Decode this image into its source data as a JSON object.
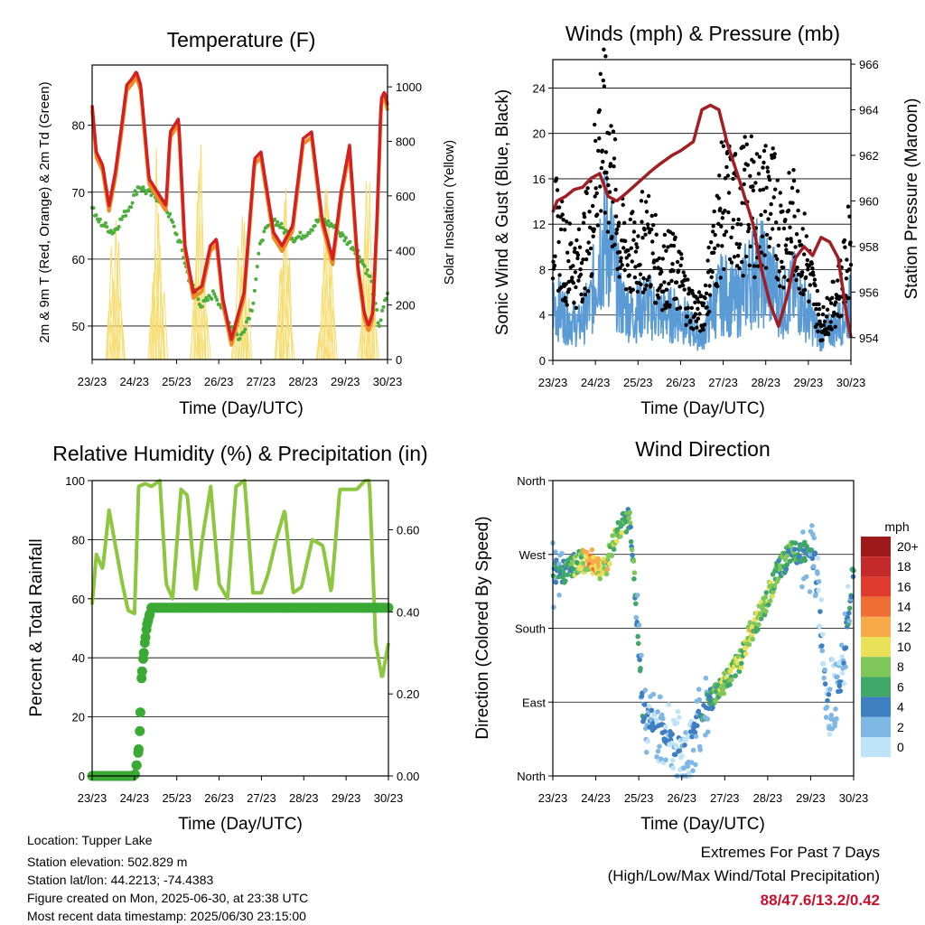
{
  "chart_data": [
    {
      "type": "line",
      "title": "Temperature (F)",
      "xlabel": "Time (Day/UTC)",
      "ylabel": "2m & 9m T (Red, Orange) & 2m Td (Green)",
      "ylabel_right": "Solar Insolation (Yellow)",
      "x_ticks": [
        "23/23",
        "24/23",
        "25/23",
        "26/23",
        "27/23",
        "28/23",
        "29/23",
        "30/23"
      ],
      "ylim": [
        45,
        89
      ],
      "y_ticks": [
        50,
        60,
        70,
        80
      ],
      "ylim_right": [
        0,
        1080
      ],
      "y_ticks_right": [
        0,
        200,
        400,
        600,
        800,
        1000
      ],
      "colors": {
        "t2m": "#d42020",
        "t9m": "#f08a24",
        "td": "#4cae3c",
        "solar": "#f7dc6f"
      },
      "series": [
        {
          "key": "t2m",
          "x": [
            0,
            0.1,
            0.25,
            0.4,
            0.55,
            0.7,
            0.82,
            0.95,
            1.05,
            1.15,
            1.35,
            1.55,
            1.75,
            1.85,
            2.05,
            2.2,
            2.4,
            2.6,
            2.8,
            2.95,
            3.1,
            3.3,
            3.6,
            3.85,
            4.0,
            4.15,
            4.3,
            4.5,
            4.75,
            5.0,
            5.2,
            5.45,
            5.7,
            5.9,
            6.1,
            6.3,
            6.45,
            6.55,
            6.65,
            6.75,
            6.85,
            6.93,
            7.0
          ],
          "values": [
            83,
            76,
            74,
            68,
            73,
            80,
            86,
            87,
            88,
            86,
            72,
            70,
            68,
            79,
            81,
            62,
            55,
            56,
            62,
            63,
            54,
            48,
            55,
            75,
            76,
            70,
            64,
            62,
            65,
            78,
            79,
            66,
            60,
            70,
            77,
            59,
            52,
            50,
            52,
            66,
            84,
            85,
            83
          ]
        },
        {
          "key": "td",
          "x": [
            0,
            0.1,
            0.3,
            0.5,
            0.7,
            0.9,
            1.1,
            1.3,
            1.6,
            1.8,
            2.1,
            2.3,
            2.6,
            2.9,
            3.2,
            3.5,
            3.8,
            4.0,
            4.3,
            4.6,
            4.8,
            5.1,
            5.4,
            5.7,
            6.0,
            6.3,
            6.6,
            6.8,
            7.0
          ],
          "values": [
            68,
            66,
            65,
            64,
            66,
            68,
            71,
            70,
            69,
            67,
            62,
            57,
            53,
            55,
            51,
            48,
            53,
            63,
            66,
            64,
            63,
            64,
            66,
            65,
            63,
            61,
            57,
            50,
            55
          ]
        },
        {
          "key": "solar",
          "day_peaks": [
            700,
            880,
            890,
            700,
            950,
            720,
            900
          ]
        }
      ]
    },
    {
      "type": "scatter",
      "title": "Winds (mph) & Pressure (mb)",
      "xlabel": "Time (Day/UTC)",
      "ylabel": "Sonic Wind & Gust (Blue, Black)",
      "ylabel_right": "Station Pressure (Maroon)",
      "x_ticks": [
        "23/23",
        "24/23",
        "25/23",
        "26/23",
        "27/23",
        "28/23",
        "29/23",
        "30/23"
      ],
      "ylim": [
        0,
        26.5
      ],
      "y_ticks": [
        0,
        4,
        8,
        12,
        16,
        20,
        24
      ],
      "ylim_right": [
        953.0,
        966.2
      ],
      "y_ticks_right": [
        954,
        956,
        958,
        960,
        962,
        964,
        966
      ],
      "colors": {
        "wind": "#5b9bd5",
        "gust": "#000000",
        "pressure": "#a01e24"
      },
      "series": [
        {
          "key": "wind",
          "x": [
            0,
            0.3,
            0.6,
            0.9,
            1.1,
            1.3,
            1.6,
            1.9,
            2.2,
            2.5,
            2.8,
            3.0,
            3.2,
            3.5,
            3.8,
            4.0,
            4.3,
            4.6,
            4.8,
            5.1,
            5.4,
            5.7,
            6.0,
            6.3,
            6.6,
            6.9,
            7.0
          ],
          "values": [
            5,
            4,
            3,
            5,
            10,
            11,
            5,
            4,
            5,
            4,
            4,
            4,
            3,
            2,
            5,
            6,
            5,
            7,
            8,
            7,
            5,
            6,
            4,
            2,
            3,
            4,
            5
          ]
        },
        {
          "key": "gust",
          "x": [
            0,
            0.3,
            0.6,
            0.9,
            1.1,
            1.3,
            1.6,
            1.9,
            2.2,
            2.5,
            2.8,
            3.0,
            3.2,
            3.5,
            3.8,
            4.0,
            4.3,
            4.6,
            4.8,
            5.1,
            5.4,
            5.7,
            6.0,
            6.3,
            6.6,
            6.9,
            7.0
          ],
          "values": [
            12,
            9,
            8,
            12,
            20,
            18,
            10,
            9,
            11,
            8,
            8,
            7,
            5,
            4,
            10,
            14,
            13,
            14,
            13,
            14,
            11,
            12,
            8,
            3,
            5,
            8,
            12
          ]
        },
        {
          "key": "pressure",
          "x": [
            0,
            0.1,
            0.3,
            0.5,
            0.7,
            0.9,
            1.1,
            1.3,
            1.5,
            1.7,
            2.0,
            2.3,
            2.5,
            2.8,
            3.0,
            3.3,
            3.5,
            3.7,
            3.9,
            4.1,
            4.4,
            4.7,
            4.9,
            5.1,
            5.3,
            5.5,
            5.7,
            5.9,
            6.1,
            6.3,
            6.5,
            6.7,
            6.9,
            7.0
          ],
          "values": [
            959.5,
            960,
            960.2,
            960.5,
            960.6,
            961,
            961.2,
            960.2,
            960,
            960.3,
            960.8,
            961.3,
            961.6,
            962,
            962.2,
            962.6,
            964,
            964.2,
            964,
            962.5,
            960.8,
            959,
            957,
            955.5,
            954.5,
            955.8,
            957.5,
            958,
            957.6,
            958.4,
            958.2,
            957.5,
            955,
            954
          ]
        }
      ]
    },
    {
      "type": "line",
      "title": "Relative Humidity (%) & Precipitation (in)",
      "xlabel": "Time (Day/UTC)",
      "ylabel": "Percent & Total Rainfall",
      "x_ticks": [
        "23/23",
        "24/23",
        "25/23",
        "26/23",
        "27/23",
        "28/23",
        "29/23",
        "30/23"
      ],
      "ylim": [
        0,
        100
      ],
      "y_ticks": [
        0,
        20,
        40,
        60,
        80,
        100
      ],
      "ylim_right": [
        0,
        0.72
      ],
      "y_ticks_right": [
        "0.00",
        "0.20",
        "0.40",
        "0.60"
      ],
      "colors": {
        "rh": "#8dc63f",
        "precip": "#3aaa35"
      },
      "series": [
        {
          "key": "rh",
          "x": [
            0,
            0.1,
            0.25,
            0.4,
            0.55,
            0.7,
            0.85,
            1.0,
            1.1,
            1.25,
            1.4,
            1.6,
            1.75,
            1.9,
            2.1,
            2.25,
            2.45,
            2.6,
            2.8,
            3.0,
            3.2,
            3.4,
            3.6,
            3.8,
            4.0,
            4.15,
            4.35,
            4.55,
            4.75,
            4.95,
            5.2,
            5.45,
            5.65,
            5.85,
            6.05,
            6.25,
            6.45,
            6.55,
            6.7,
            6.85,
            7.0
          ],
          "values": [
            58,
            75,
            70,
            90,
            78,
            66,
            56,
            55,
            98,
            99,
            98,
            100,
            65,
            60,
            97,
            95,
            62,
            80,
            98,
            65,
            60,
            98,
            100,
            62,
            62,
            68,
            80,
            90,
            62,
            64,
            80,
            78,
            62,
            97,
            97,
            97,
            100,
            100,
            45,
            33,
            45
          ]
        },
        {
          "key": "precip",
          "x": [
            0,
            0.5,
            1.0,
            1.03,
            1.08,
            1.12,
            1.16,
            1.2,
            1.25,
            1.3,
            1.4,
            2.0,
            3.0,
            4.0,
            5.0,
            6.0,
            7.0
          ],
          "values": [
            0,
            0,
            0,
            0.01,
            0.05,
            0.08,
            0.23,
            0.28,
            0.33,
            0.37,
            0.41,
            0.41,
            0.41,
            0.41,
            0.41,
            0.41,
            0.41
          ]
        }
      ]
    },
    {
      "type": "scatter",
      "title": "Wind Direction",
      "xlabel": "Time (Day/UTC)",
      "ylabel": "Direction (Colored By Speed)",
      "x_ticks": [
        "23/23",
        "24/23",
        "25/23",
        "26/23",
        "27/23",
        "28/23",
        "29/23",
        "30/23"
      ],
      "y_ticks": [
        "North",
        "East",
        "South",
        "West",
        "North"
      ],
      "ylim": [
        0,
        360
      ],
      "colorbar": {
        "unit": "mph",
        "labels": [
          "20+",
          "18",
          "16",
          "14",
          "12",
          "10",
          "8",
          "6",
          "4",
          "2",
          "0"
        ],
        "colors": [
          "#9e1a1a",
          "#c42a2a",
          "#df3b2e",
          "#ee6e34",
          "#f8a94a",
          "#e9e157",
          "#7fc75a",
          "#3fa868",
          "#3d7fc1",
          "#7fb8e4",
          "#bfe3f7"
        ]
      },
      "series": [
        {
          "key": "direction",
          "x": [
            0,
            0.3,
            0.6,
            0.9,
            1.2,
            1.5,
            1.8,
            2.1,
            2.5,
            2.8,
            3.1,
            3.4,
            3.7,
            4.0,
            4.3,
            4.6,
            4.9,
            5.2,
            5.5,
            5.8,
            6.1,
            6.4,
            6.7,
            7.0
          ],
          "values": [
            250,
            248,
            262,
            262,
            250,
            300,
            315,
            75,
            60,
            40,
            25,
            70,
            95,
            115,
            135,
            175,
            205,
            245,
            270,
            275,
            262,
            90,
            115,
            250
          ],
          "speeds": [
            4,
            5,
            8,
            12,
            9,
            7,
            6,
            3,
            2,
            2,
            1,
            3,
            6,
            8,
            7,
            9,
            8,
            7,
            6,
            5,
            3,
            1,
            2,
            4
          ]
        }
      ]
    }
  ],
  "info": {
    "location": "Location: Tupper Lake",
    "elevation": "Station elevation: 502.829 m",
    "latlon": "Station lat/lon: 44.2213; -74.4383",
    "created": "Figure created on Mon, 2025-06-30, at 23:38 UTC",
    "recent": "Most recent data timestamp: 2025/06/30 23:15:00"
  },
  "extremes": {
    "title": "Extremes For Past 7 Days",
    "subtitle": "(High/Low/Max Wind/Total Precipitation)",
    "values": "88/47.6/13.2/0.42"
  }
}
